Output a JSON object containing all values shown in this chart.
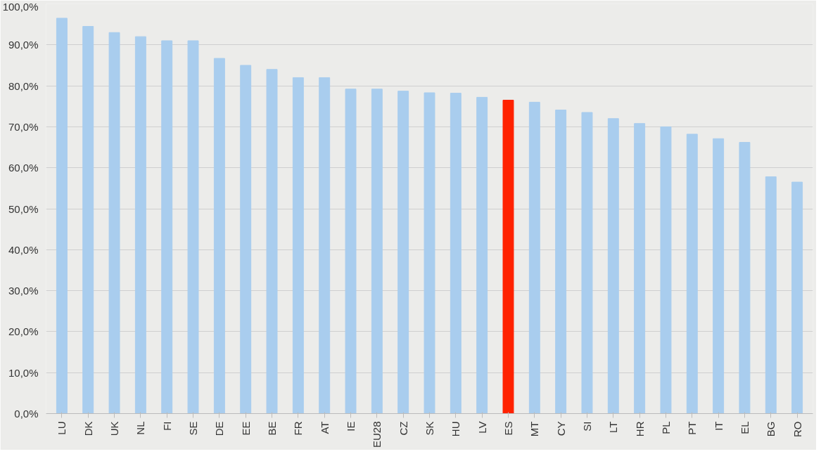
{
  "chart_data": {
    "type": "bar",
    "categories": [
      "LU",
      "DK",
      "UK",
      "NL",
      "FI",
      "SE",
      "DE",
      "EE",
      "BE",
      "FR",
      "AT",
      "IE",
      "EU28",
      "CZ",
      "SK",
      "HU",
      "LV",
      "ES",
      "MT",
      "CY",
      "SI",
      "LT",
      "HR",
      "PL",
      "PT",
      "IT",
      "EL",
      "BG",
      "RO"
    ],
    "values": [
      96.5,
      94.5,
      93,
      92,
      91,
      91,
      86.7,
      85,
      84,
      82,
      82,
      79.2,
      79.2,
      78.7,
      78.3,
      78.2,
      77.2,
      76.5,
      76,
      74.1,
      73.5,
      72,
      70.8,
      70,
      68.2,
      67.1,
      66.2,
      57.8,
      56.5
    ],
    "colors": [
      "#a9cdee",
      "#a9cdee",
      "#a9cdee",
      "#a9cdee",
      "#a9cdee",
      "#a9cdee",
      "#a9cdee",
      "#a9cdee",
      "#a9cdee",
      "#a9cdee",
      "#a9cdee",
      "#a9cdee",
      "#a9cdee",
      "#a9cdee",
      "#a9cdee",
      "#a9cdee",
      "#a9cdee",
      "#ff2200",
      "#a9cdee",
      "#a9cdee",
      "#a9cdee",
      "#a9cdee",
      "#a9cdee",
      "#a9cdee",
      "#a9cdee",
      "#a9cdee",
      "#a9cdee",
      "#a9cdee",
      "#a9cdee"
    ],
    "ylim": [
      0,
      100
    ],
    "yticks": [
      {
        "value": 0,
        "label": "0,0%"
      },
      {
        "value": 10,
        "label": "10,0%"
      },
      {
        "value": 20,
        "label": "20,0%"
      },
      {
        "value": 30,
        "label": "30,0%"
      },
      {
        "value": 40,
        "label": "40,0%"
      },
      {
        "value": 50,
        "label": "50,0%"
      },
      {
        "value": 60,
        "label": "60,0%"
      },
      {
        "value": 70,
        "label": "70,0%"
      },
      {
        "value": 80,
        "label": "80,0%"
      },
      {
        "value": 90,
        "label": "90,0%"
      },
      {
        "value": 100,
        "label": "100,0%"
      }
    ],
    "grid": "y"
  }
}
